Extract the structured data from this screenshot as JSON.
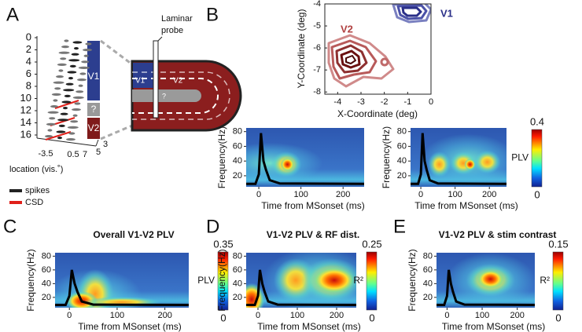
{
  "panel_labels": [
    "A",
    "B",
    "C",
    "D",
    "E"
  ],
  "panel_a": {
    "depth_ticks": [
      0,
      2,
      4,
      6,
      8,
      10,
      12,
      14,
      16
    ],
    "area_labels": [
      "V1",
      "?",
      "V2"
    ],
    "x_ticks": [
      -3.5,
      0.5,
      7
    ],
    "z_ticks": [
      3,
      5
    ],
    "x_label": "location (vis.˚)",
    "legend": [
      "spikes",
      "CSD"
    ],
    "probe_label": [
      "Laminar",
      "probe"
    ],
    "schematic_labels": [
      "V1",
      "V2",
      "?"
    ]
  },
  "panel_b": {
    "x_label": "X-Coordinate (deg)",
    "y_label": "Y-Coordinate (deg)",
    "xlim": [
      -4.55,
      0
    ],
    "ylim": [
      -8.1,
      -4
    ],
    "xticks": [
      -4,
      -3,
      -2,
      -1,
      0
    ],
    "yticks": [
      -4,
      -5,
      -6,
      -7,
      -8
    ],
    "area_labels": [
      "V1",
      "V2"
    ]
  },
  "heatmaps": [
    {
      "y_label": "Frequency(Hz)",
      "x_label": "Time from MSonset (ms)",
      "xlim": [
        -30,
        250
      ],
      "ylim": [
        5,
        85
      ],
      "xticks": [
        0,
        100,
        200
      ],
      "yticks": [
        20,
        40,
        60,
        80
      ]
    },
    {
      "y_label": "Frequency(Hz)",
      "x_label": "Time from MSonset (ms)",
      "xlim": [
        -30,
        250
      ],
      "ylim": [
        5,
        85
      ],
      "xticks": [
        0,
        100,
        200
      ],
      "yticks": [
        20,
        40,
        60,
        80
      ],
      "colorbar": {
        "max": 0.4,
        "label": "PLV",
        "min": 0
      }
    },
    {
      "title": "Overall V1-V2 PLV",
      "y_label": "Frequency(Hz)",
      "x_label": "Time from MSonset (ms)",
      "xlim": [
        -30,
        250
      ],
      "ylim": [
        5,
        85
      ],
      "xticks": [
        0,
        100,
        200
      ],
      "yticks": [
        20,
        40,
        60,
        80
      ],
      "colorbar": {
        "max": 0.35,
        "label": "PLV",
        "min": 0
      }
    },
    {
      "title": "V1-V2 PLV & RF dist.",
      "y_label": "Frequency(Hz)",
      "x_label": "Time from MSonset (ms)",
      "xlim": [
        -30,
        250
      ],
      "ylim": [
        5,
        85
      ],
      "xticks": [
        0,
        100,
        200
      ],
      "yticks": [
        20,
        40,
        60,
        80
      ],
      "colorbar": {
        "max": 0.25,
        "label": "R²",
        "min": 0
      }
    },
    {
      "title": "V1-V2 PLV & stim contrast",
      "y_label": "Frequency(Hz)",
      "x_label": "Time from MSonset (ms)",
      "xlim": [
        -30,
        250
      ],
      "ylim": [
        5,
        85
      ],
      "xticks": [
        0,
        100,
        200
      ],
      "yticks": [
        20,
        40,
        60,
        80
      ],
      "colorbar": {
        "max": 0.15,
        "label": "R²",
        "min": 0
      }
    }
  ]
}
